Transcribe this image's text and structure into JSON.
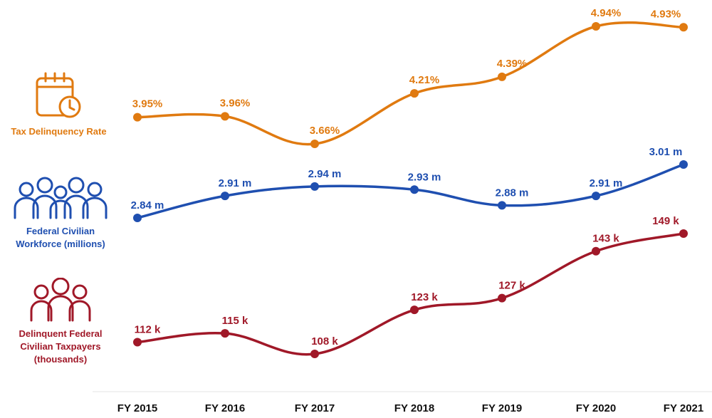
{
  "chart_data": {
    "type": "line",
    "categories": [
      "FY 2015",
      "FY 2016",
      "FY 2017",
      "FY 2018",
      "FY 2019",
      "FY 2020",
      "FY 2021"
    ],
    "series": [
      {
        "name": "Tax Delinquency Rate",
        "color": "#E07A10",
        "icon": "calendar-clock-icon",
        "values": [
          3.95,
          3.96,
          3.66,
          4.21,
          4.39,
          4.94,
          4.93
        ],
        "labels": [
          "3.95%",
          "3.96%",
          "3.66%",
          "4.21%",
          "4.39%",
          "4.94%",
          "4.93%"
        ]
      },
      {
        "name": "Federal Civilian\nWorkforce (millions)",
        "color": "#1F4FB0",
        "icon": "people-group-icon",
        "values": [
          2.84,
          2.91,
          2.94,
          2.93,
          2.88,
          2.91,
          3.01
        ],
        "labels": [
          "2.84 m",
          "2.91 m",
          "2.94 m",
          "2.93 m",
          "2.88 m",
          "2.91 m",
          "3.01 m"
        ]
      },
      {
        "name": "Delinquent Federal\nCivilian Taxpayers\n(thousands)",
        "color": "#A01828",
        "icon": "people-group-icon",
        "values": [
          112,
          115,
          108,
          123,
          127,
          143,
          149
        ],
        "labels": [
          "112 k",
          "115 k",
          "108 k",
          "123 k",
          "127 k",
          "143 k",
          "149 k"
        ]
      }
    ],
    "title": "",
    "xlabel": "",
    "ylabel": "",
    "grid": false
  }
}
